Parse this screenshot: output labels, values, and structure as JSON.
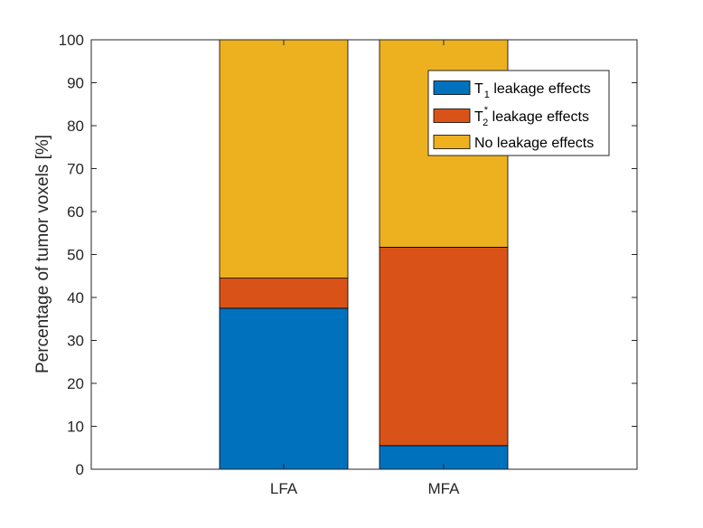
{
  "chart_data": {
    "type": "bar",
    "stacked": true,
    "title": "",
    "xlabel": "",
    "ylabel": "Percentage of tumor voxels [%]",
    "ylim": [
      0,
      100
    ],
    "yticks": [
      0,
      10,
      20,
      30,
      40,
      50,
      60,
      70,
      80,
      90,
      100
    ],
    "categories": [
      "LFA",
      "MFA"
    ],
    "series": [
      {
        "name": "T1 leakage effects",
        "label_main": "T",
        "label_sub": "1",
        "label_sup": "",
        "label_rest": " leakage effects",
        "color": "#0072BD",
        "values": [
          37.5,
          5.5
        ]
      },
      {
        "name": "T2* leakage effects",
        "label_main": "T",
        "label_sub": "2",
        "label_sup": "*",
        "label_rest": " leakage effects",
        "color": "#D95319",
        "values": [
          7.0,
          46.2
        ]
      },
      {
        "name": "No leakage effects",
        "label_main": "No leakage effects",
        "label_sub": "",
        "label_sup": "",
        "label_rest": "",
        "color": "#EDB120",
        "values": [
          55.5,
          48.3
        ]
      }
    ],
    "grid": false,
    "legend_position": "top-right-inside"
  }
}
